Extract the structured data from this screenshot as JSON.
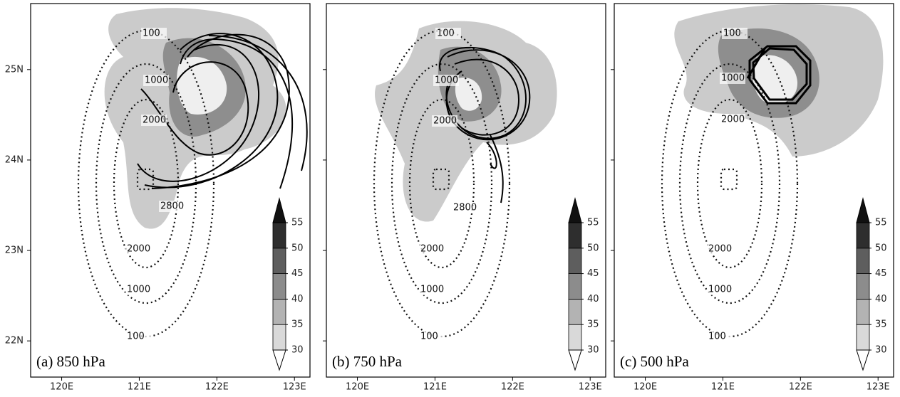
{
  "x_axis": {
    "xlim": [
      119.6,
      123.2
    ],
    "ticks": [
      {
        "value": 120,
        "label": "120E"
      },
      {
        "value": 121,
        "label": "121E"
      },
      {
        "value": 122,
        "label": "122E"
      },
      {
        "value": 123,
        "label": "123E"
      }
    ]
  },
  "y_axis": {
    "ylim": [
      21.6,
      25.73
    ],
    "ticks": [
      {
        "value": 22,
        "label": "22N"
      },
      {
        "value": 23,
        "label": "23N"
      },
      {
        "value": 24,
        "label": "24N"
      },
      {
        "value": 25,
        "label": "25N"
      }
    ]
  },
  "colorbar": {
    "range": [
      30,
      55
    ],
    "ticks": [
      30,
      35,
      40,
      45,
      50,
      55
    ]
  },
  "panels": [
    {
      "label": "(a) 850 hPa",
      "contour_labels": [
        "100",
        "1000",
        "2000",
        "2800",
        "2000",
        "1000",
        "100"
      ]
    },
    {
      "label": "(b) 750 hPa",
      "contour_labels": [
        "100",
        "1000",
        "2000",
        "2800",
        "2000",
        "1000",
        "100"
      ]
    },
    {
      "label": "(c) 500 hPa",
      "contour_labels": [
        "100",
        "1000",
        "2000",
        "2000",
        "1000",
        "100"
      ]
    }
  ]
}
